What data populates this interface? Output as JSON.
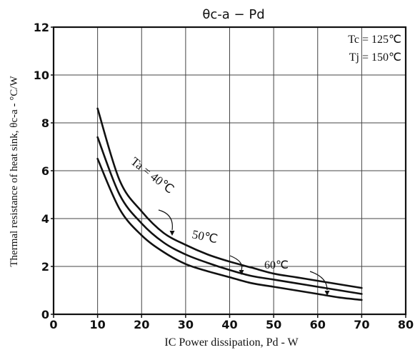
{
  "chart_data": {
    "type": "line",
    "title": "θc-a − Pd",
    "xlabel": "IC Power dissipation, Pd - W",
    "ylabel": "Thermal resistance of heat sink, θc-a - °C/W",
    "xlim": [
      0,
      80
    ],
    "ylim": [
      0,
      12
    ],
    "xticks": [
      "0",
      "10",
      "20",
      "30",
      "40",
      "50",
      "60",
      "70",
      "80"
    ],
    "yticks": [
      "0",
      "2",
      "4",
      "6",
      "8",
      "10",
      "12"
    ],
    "grid": true,
    "conditions": [
      "Tc = 125℃",
      "Tj = 150℃"
    ],
    "series": [
      {
        "name": "Ta = 40℃",
        "x": [
          10,
          15,
          20,
          25,
          30,
          35,
          40,
          45,
          50,
          55,
          60,
          65,
          70
        ],
        "y": [
          8.6,
          5.6,
          4.3,
          3.4,
          2.9,
          2.5,
          2.2,
          1.95,
          1.7,
          1.55,
          1.4,
          1.25,
          1.1
        ]
      },
      {
        "name": "50℃",
        "x": [
          10,
          15,
          20,
          25,
          30,
          35,
          40,
          45,
          50,
          55,
          60,
          65,
          70
        ],
        "y": [
          7.4,
          5.0,
          3.8,
          3.0,
          2.5,
          2.15,
          1.85,
          1.6,
          1.45,
          1.3,
          1.15,
          1.0,
          0.85
        ]
      },
      {
        "name": "60℃",
        "x": [
          10,
          15,
          20,
          25,
          30,
          35,
          40,
          45,
          50,
          55,
          60,
          65,
          70
        ],
        "y": [
          6.5,
          4.4,
          3.3,
          2.6,
          2.1,
          1.8,
          1.55,
          1.3,
          1.15,
          1.0,
          0.85,
          0.7,
          0.6
        ]
      }
    ],
    "annotations": [
      {
        "text": "Ta = 40℃",
        "series": 0
      },
      {
        "text": "50℃",
        "series": 1
      },
      {
        "text": "60℃",
        "series": 2
      }
    ]
  }
}
